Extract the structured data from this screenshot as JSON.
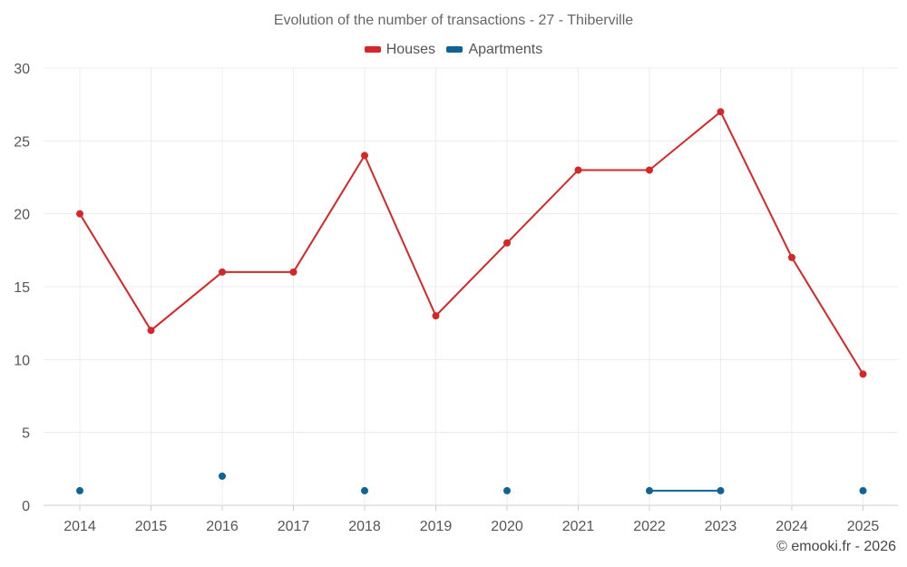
{
  "chart_data": {
    "type": "line",
    "title": "Evolution of the number of transactions - 27 - Thiberville",
    "x": [
      "2014",
      "2015",
      "2016",
      "2017",
      "2018",
      "2019",
      "2020",
      "2021",
      "2022",
      "2023",
      "2024",
      "2025"
    ],
    "series": [
      {
        "name": "Houses",
        "color": "#d62728",
        "values": [
          20,
          12,
          16,
          16,
          24,
          13,
          18,
          23,
          23,
          27,
          17,
          9
        ]
      },
      {
        "name": "Apartments",
        "color": "#0f6496",
        "values": [
          1,
          null,
          2,
          null,
          1,
          null,
          1,
          null,
          1,
          1,
          null,
          1
        ]
      }
    ],
    "ylim": [
      0,
      30
    ],
    "yticks": [
      "0",
      "5",
      "10",
      "15",
      "20",
      "25",
      "30"
    ],
    "grid": true,
    "legend_position": "top-center"
  },
  "watermark": "© emooki.fr - 2026"
}
